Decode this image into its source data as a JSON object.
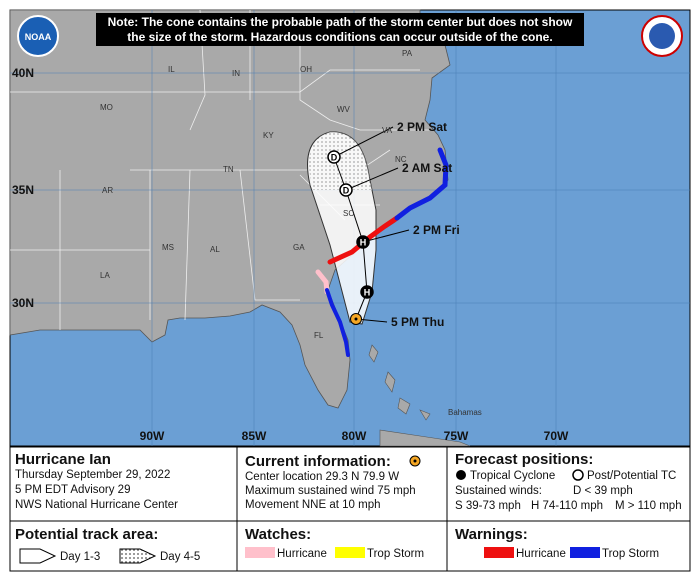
{
  "map": {
    "note": [
      "Note: The cone contains the probable path of the storm center but does not show",
      "the size of the storm. Hazardous conditions can occur outside of the cone."
    ],
    "logo": "NOAA",
    "lat_labels": [
      "40N",
      "35N",
      "30N"
    ],
    "lon_labels": [
      "90W",
      "85W",
      "80W",
      "75W",
      "70W"
    ],
    "state_labels": [
      "IL",
      "IN",
      "OH",
      "PA",
      "MO",
      "WV",
      "KY",
      "VA",
      "TN",
      "NC",
      "AR",
      "SC",
      "MS",
      "AL",
      "GA",
      "LA",
      "FL"
    ],
    "place_labels": [
      "Bahamas"
    ],
    "forecast_points": [
      {
        "symbol": "D",
        "label": "2 PM Sat"
      },
      {
        "symbol": "D",
        "label": "2 AM Sat"
      },
      {
        "symbol": "H",
        "label": "2 PM Fri"
      },
      {
        "symbol": "H"
      },
      {
        "label": "5 PM Thu"
      }
    ]
  },
  "legend": {
    "storm": {
      "name": "Hurricane Ian",
      "lines": [
        "Thursday September 29, 2022",
        "5 PM EDT Advisory 29",
        "NWS National Hurricane Center"
      ]
    },
    "current": {
      "title": "Current information:",
      "lines": [
        "Center location 29.3 N 79.9 W",
        "Maximum sustained wind 75 mph",
        "Movement NNE at 10 mph"
      ]
    },
    "forecast": {
      "title": "Forecast positions:",
      "tropical": "Tropical Cyclone",
      "post": "Post/Potential TC",
      "winds": "Sustained winds:",
      "d": "D < 39 mph",
      "s": "S 39-73 mph",
      "h": "H 74-110 mph",
      "m": "M > 110 mph"
    },
    "track": {
      "title": "Potential track area:",
      "day13": "Day 1-3",
      "day45": "Day 4-5"
    },
    "watches": {
      "title": "Watches:",
      "hurricane": "Hurricane",
      "trop": "Trop Storm"
    },
    "warnings": {
      "title": "Warnings:",
      "hurricane": "Hurricane",
      "trop": "Trop Storm"
    }
  }
}
